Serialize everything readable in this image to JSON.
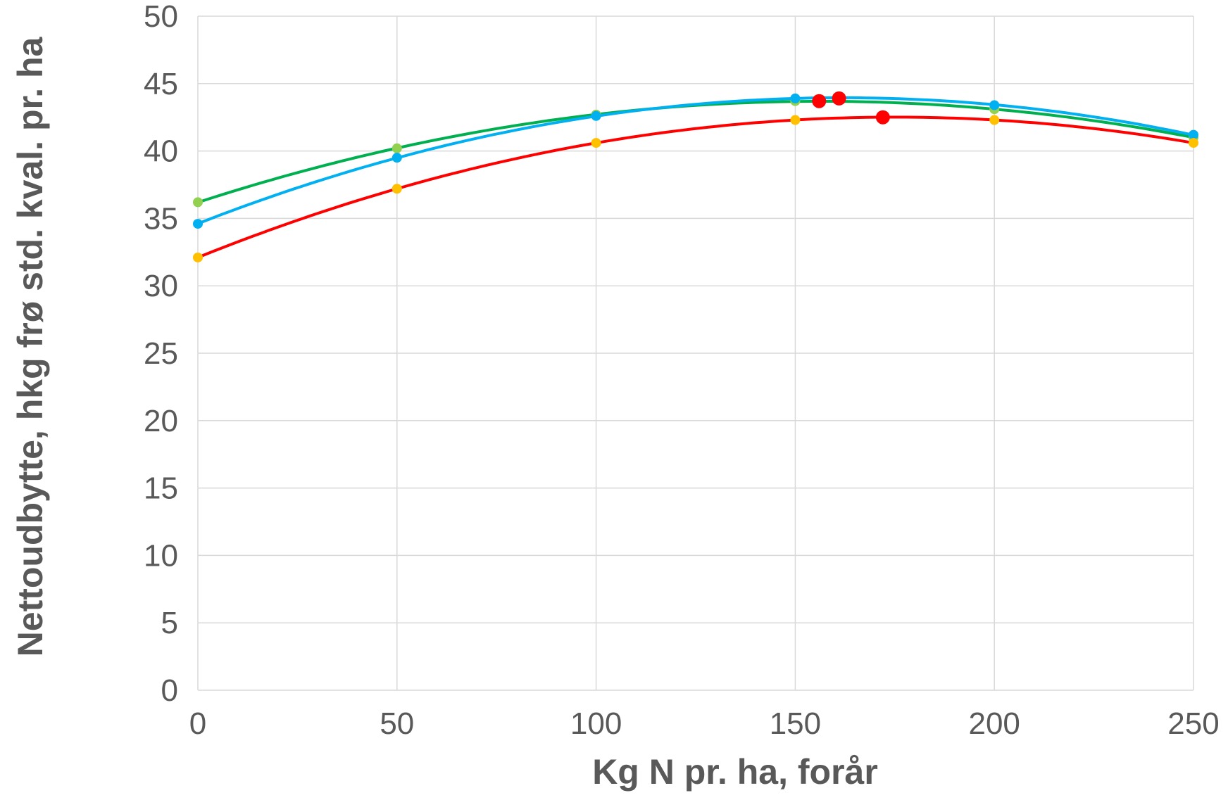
{
  "chart_data": {
    "type": "line",
    "xlabel": "Kg N pr. ha, forår",
    "ylabel": "Nettoudbytte, hkg frø std. kval. pr. ha",
    "xlim": [
      0,
      250
    ],
    "ylim": [
      0,
      50
    ],
    "x_ticks": [
      "0",
      "50",
      "100",
      "150",
      "200",
      "250"
    ],
    "y_ticks": [
      "0",
      "5",
      "10",
      "15",
      "20",
      "25",
      "30",
      "35",
      "40",
      "45",
      "50"
    ],
    "grid": true,
    "legend": "none",
    "series": [
      {
        "color": "#00b050",
        "point_color": "#92d050",
        "x": [
          0,
          50,
          100,
          150,
          200,
          250
        ],
        "y": [
          36.2,
          40.2,
          42.7,
          43.7,
          43.1,
          41.0
        ],
        "optimum": {
          "x": 156,
          "y": 43.7
        }
      },
      {
        "color": "#00b0f0",
        "point_color": "#00b0f0",
        "x": [
          0,
          50,
          100,
          150,
          200,
          250
        ],
        "y": [
          34.6,
          39.5,
          42.6,
          43.9,
          43.4,
          41.2
        ],
        "optimum": {
          "x": 161,
          "y": 43.9
        }
      },
      {
        "color": "#ff0000",
        "point_color": "#ffc000",
        "x": [
          0,
          50,
          100,
          150,
          200,
          250
        ],
        "y": [
          32.1,
          37.2,
          40.6,
          42.3,
          42.3,
          40.6
        ],
        "optimum": {
          "x": 172,
          "y": 42.5
        }
      }
    ],
    "optimum_marker_color": "#ff0000"
  }
}
